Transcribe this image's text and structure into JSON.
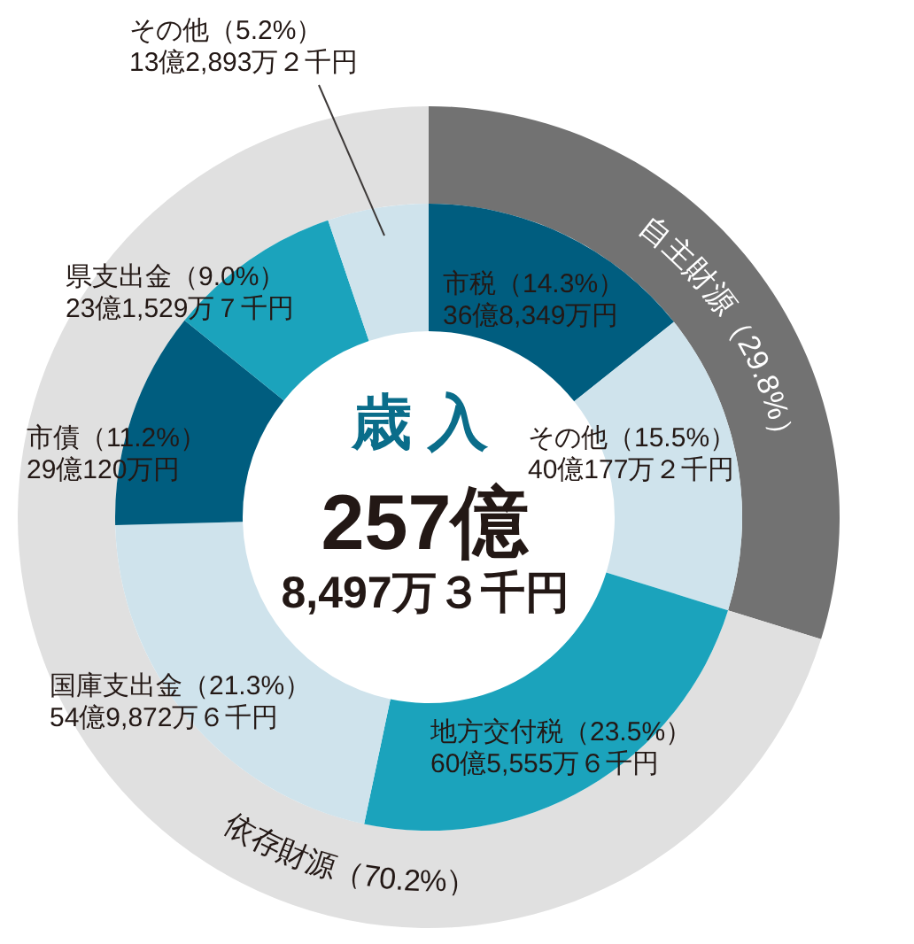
{
  "chart_data": [
    {
      "type": "donut",
      "categories": [
        "自主財源",
        "依存財源"
      ],
      "values": [
        29.8,
        70.2
      ],
      "colors": [
        "#727272",
        "#e0e0e0"
      ],
      "value_labels": [
        "（29.8%）",
        "（70.2%）"
      ]
    },
    {
      "type": "donut",
      "title": "歳 入",
      "annotations": [
        "257億",
        "8,497万３千円"
      ],
      "categories": [
        "市税",
        "その他",
        "地方交付税",
        "国庫支出金",
        "市債",
        "県支出金",
        "その他"
      ],
      "values": [
        14.3,
        15.5,
        23.5,
        21.3,
        11.2,
        9.0,
        5.2
      ],
      "colors": [
        "#005d7f",
        "#cfe3ec",
        "#1ba3bc",
        "#cfe3ec",
        "#005d7f",
        "#1ba3bc",
        "#cfe3ec"
      ],
      "value_labels": [
        "（14.3%）\n36億8,349万円",
        "（15.5%）\n40億177万２千円",
        "（23.5%）\n60億5,555万６千円",
        "（21.3%）\n54億9,872万６千円",
        "（11.2%）\n29億120万円",
        "（9.0%）\n23億1,529万７千円",
        "（5.2%）\n13億2,893万２千円"
      ]
    }
  ]
}
